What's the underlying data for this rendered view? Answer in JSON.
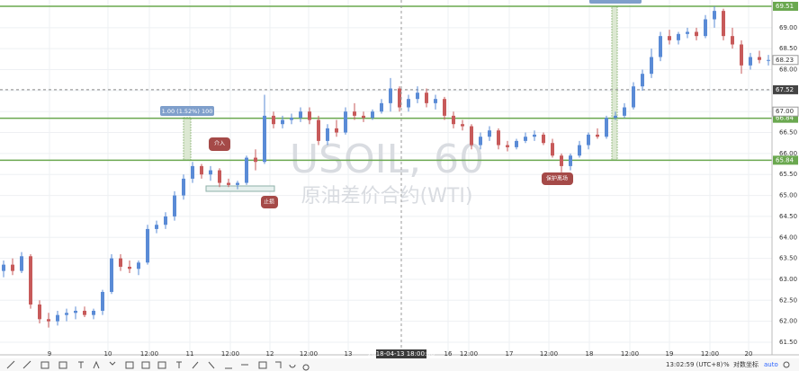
{
  "chart_data": {
    "type": "candlestick",
    "watermark": "USOIL, 60",
    "watermark_sub": "原油差价合约(WTI)",
    "up_color": "#5a8bd6",
    "down_color": "#c75a5a",
    "grid": true,
    "ylim": [
      61.2,
      69.66
    ],
    "yticks": [
      {
        "value": 61.5,
        "label": "61.50"
      },
      {
        "value": 62,
        "label": "62.00"
      },
      {
        "value": 62.5,
        "label": "62.50"
      },
      {
        "value": 63,
        "label": "63.00"
      },
      {
        "value": 63.5,
        "label": "63.50"
      },
      {
        "value": 64,
        "label": "64.00"
      },
      {
        "value": 64.5,
        "label": "64.50"
      },
      {
        "value": 65,
        "label": "65.00"
      },
      {
        "value": 65.5,
        "label": "65.50"
      },
      {
        "value": 66,
        "label": "66.00"
      },
      {
        "value": 66.5,
        "label": "66.50"
      },
      {
        "value": 67,
        "label": "67.00"
      },
      {
        "value": 67.5,
        "label": "67.50"
      },
      {
        "value": 68,
        "label": "68.00"
      },
      {
        "value": 68.5,
        "label": "68.50"
      },
      {
        "value": 69,
        "label": "69.00"
      }
    ],
    "x_labels": [
      "9",
      "10",
      "12:00",
      "11",
      "12:00",
      "12",
      "12:00",
      "13",
      "2018-04-13 18:00:00",
      "16",
      "12:00",
      "17",
      "12:00",
      "18",
      "12:00",
      "19",
      "12:00",
      "20"
    ],
    "levels": [
      {
        "value": 69.51,
        "label": "69.51",
        "color": "#6aa84f"
      },
      {
        "value": 66.84,
        "label": "66.84",
        "color": "#6aa84f"
      },
      {
        "value": 65.84,
        "label": "65.84",
        "color": "#6aa84f"
      },
      {
        "value": 67.52,
        "label": "67.52",
        "color": "#444444"
      }
    ],
    "price_labels": [
      {
        "value": 68.23,
        "label": "68.23"
      },
      {
        "value": 67,
        "label": "67.00"
      }
    ],
    "measure_label": "1.00 (1.52%) 100",
    "callouts": [
      "介入",
      "止损",
      "保护离场"
    ],
    "candles": [
      [
        63.2,
        63.45,
        63.05,
        63.35
      ],
      [
        63.35,
        63.5,
        63.1,
        63.2
      ],
      [
        63.2,
        63.65,
        63.15,
        63.55
      ],
      [
        63.55,
        63.6,
        62.3,
        62.4
      ],
      [
        62.4,
        62.5,
        61.95,
        62.05
      ],
      [
        62.05,
        62.2,
        61.85,
        62.0
      ],
      [
        62.0,
        62.25,
        61.9,
        62.15
      ],
      [
        62.15,
        62.3,
        62.0,
        62.2
      ],
      [
        62.2,
        62.35,
        62.05,
        62.25
      ],
      [
        62.25,
        62.35,
        62.1,
        62.15
      ],
      [
        62.15,
        62.3,
        62.05,
        62.25
      ],
      [
        62.25,
        62.75,
        62.15,
        62.7
      ],
      [
        62.7,
        63.6,
        62.65,
        63.5
      ],
      [
        63.5,
        63.6,
        63.2,
        63.3
      ],
      [
        63.3,
        63.45,
        63.15,
        63.25
      ],
      [
        63.25,
        63.45,
        63.1,
        63.4
      ],
      [
        63.4,
        64.3,
        63.35,
        64.2
      ],
      [
        64.2,
        64.4,
        64.1,
        64.3
      ],
      [
        64.3,
        64.6,
        64.2,
        64.5
      ],
      [
        64.5,
        65.1,
        64.4,
        65.0
      ],
      [
        65.0,
        65.5,
        64.9,
        65.4
      ],
      [
        65.4,
        65.8,
        65.3,
        65.7
      ],
      [
        65.7,
        65.75,
        65.4,
        65.5
      ],
      [
        65.5,
        65.7,
        65.35,
        65.6
      ],
      [
        65.6,
        65.65,
        65.2,
        65.3
      ],
      [
        65.3,
        65.4,
        65.2,
        65.25
      ],
      [
        65.25,
        65.35,
        65.15,
        65.3
      ],
      [
        65.3,
        65.95,
        65.25,
        65.9
      ],
      [
        65.9,
        66.1,
        65.6,
        65.8
      ],
      [
        65.8,
        67.4,
        65.75,
        66.9
      ],
      [
        66.9,
        67.0,
        66.6,
        66.7
      ],
      [
        66.7,
        66.9,
        66.6,
        66.8
      ],
      [
        66.8,
        66.95,
        66.7,
        66.85
      ],
      [
        66.85,
        67.1,
        66.75,
        67.0
      ],
      [
        67.0,
        67.1,
        66.7,
        66.8
      ],
      [
        66.8,
        66.9,
        66.2,
        66.3
      ],
      [
        66.3,
        66.7,
        66.2,
        66.6
      ],
      [
        66.6,
        66.8,
        66.4,
        66.5
      ],
      [
        66.5,
        67.1,
        66.45,
        67.0
      ],
      [
        67.0,
        67.2,
        66.8,
        66.9
      ],
      [
        66.9,
        67.0,
        66.75,
        66.85
      ],
      [
        66.85,
        67.05,
        66.8,
        67.0
      ],
      [
        67.0,
        67.3,
        66.95,
        67.2
      ],
      [
        67.2,
        67.8,
        67.0,
        67.55
      ],
      [
        67.55,
        67.6,
        67.0,
        67.1
      ],
      [
        67.1,
        67.4,
        67.0,
        67.3
      ],
      [
        67.3,
        67.6,
        67.2,
        67.45
      ],
      [
        67.45,
        67.55,
        67.1,
        67.2
      ],
      [
        67.2,
        67.4,
        67.05,
        67.3
      ],
      [
        67.3,
        67.35,
        66.8,
        66.9
      ],
      [
        66.9,
        67.0,
        66.6,
        66.7
      ],
      [
        66.7,
        66.8,
        66.55,
        66.65
      ],
      [
        66.65,
        66.7,
        66.1,
        66.2
      ],
      [
        66.2,
        66.5,
        66.1,
        66.4
      ],
      [
        66.4,
        66.65,
        66.3,
        66.55
      ],
      [
        66.55,
        66.6,
        66.1,
        66.2
      ],
      [
        66.2,
        66.3,
        66.05,
        66.15
      ],
      [
        66.15,
        66.35,
        66.1,
        66.3
      ],
      [
        66.3,
        66.5,
        66.25,
        66.4
      ],
      [
        66.4,
        66.55,
        66.3,
        66.45
      ],
      [
        66.45,
        66.5,
        66.2,
        66.25
      ],
      [
        66.25,
        66.35,
        65.9,
        65.95
      ],
      [
        65.95,
        66.0,
        65.55,
        65.7
      ],
      [
        65.7,
        66.0,
        65.6,
        65.95
      ],
      [
        65.95,
        66.3,
        65.9,
        66.2
      ],
      [
        66.2,
        66.5,
        66.1,
        66.45
      ],
      [
        66.45,
        66.6,
        66.35,
        66.4
      ],
      [
        66.4,
        66.9,
        66.35,
        66.85
      ],
      [
        66.85,
        67.0,
        66.8,
        66.9
      ],
      [
        66.9,
        67.2,
        66.85,
        67.1
      ],
      [
        67.1,
        67.7,
        67.05,
        67.6
      ],
      [
        67.6,
        68.0,
        67.5,
        67.9
      ],
      [
        67.9,
        68.5,
        67.8,
        68.3
      ],
      [
        68.3,
        68.9,
        68.2,
        68.8
      ],
      [
        68.8,
        68.95,
        68.6,
        68.7
      ],
      [
        68.7,
        68.9,
        68.6,
        68.85
      ],
      [
        68.85,
        69.0,
        68.75,
        68.9
      ],
      [
        68.9,
        69.0,
        68.7,
        68.8
      ],
      [
        68.8,
        69.3,
        68.75,
        69.2
      ],
      [
        69.2,
        69.51,
        69.0,
        69.4
      ],
      [
        69.4,
        69.45,
        68.7,
        68.8
      ],
      [
        68.8,
        69.0,
        68.5,
        68.6
      ],
      [
        68.6,
        68.7,
        67.9,
        68.1
      ],
      [
        68.1,
        68.4,
        68.0,
        68.3
      ],
      [
        68.3,
        68.45,
        68.15,
        68.23
      ],
      [
        68.23,
        68.35,
        68.1,
        68.23
      ]
    ]
  },
  "toolbar": {
    "time": "13:02:59 (UTC+8)",
    "percent": "%",
    "log": "对数坐标",
    "auto": "auto"
  }
}
